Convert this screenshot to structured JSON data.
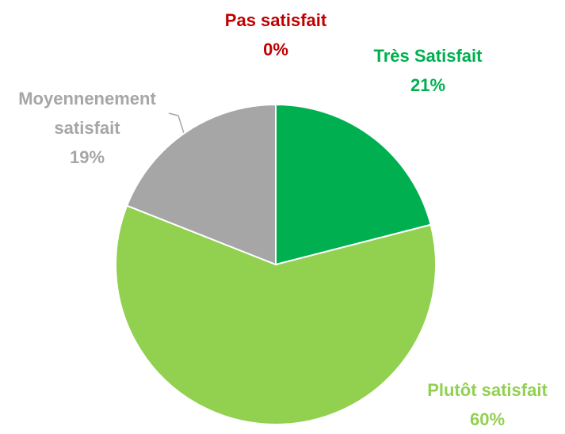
{
  "chart_data": {
    "type": "pie",
    "categories": [
      "Très Satisfait",
      "Plutôt satisfait",
      "Moyennenement satisfait",
      "Pas satisfait"
    ],
    "values": [
      21,
      60,
      19,
      0
    ],
    "value_labels": [
      "21%",
      "60%",
      "19%",
      "0%"
    ],
    "colors": [
      "#00b050",
      "#92d050",
      "#a6a6a6",
      "#c00000"
    ],
    "label_colors": [
      "#00b050",
      "#92d050",
      "#a6a6a6",
      "#c00000"
    ]
  }
}
